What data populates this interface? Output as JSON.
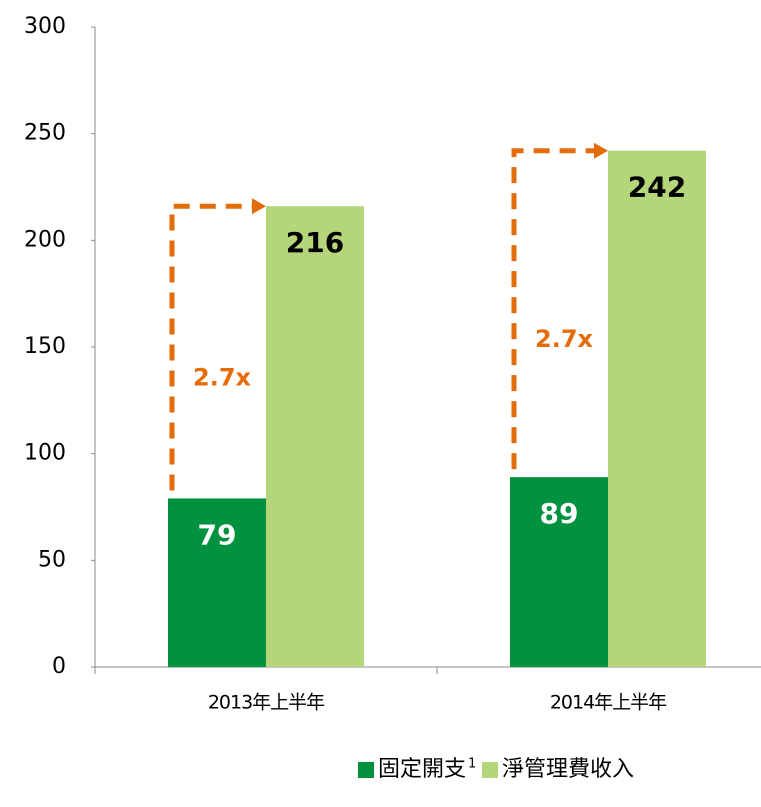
{
  "chart_data": {
    "type": "bar",
    "categories": [
      "2013年上半年",
      "2014年上半年"
    ],
    "series": [
      {
        "name": "固定開支",
        "color": "#00923f",
        "values": [
          79,
          89
        ]
      },
      {
        "name": "淨管理費收入",
        "color": "#b5d57a",
        "values": [
          216,
          242
        ]
      }
    ],
    "legend_footnote": "1",
    "annotations": [
      "2.7x",
      "2.7x"
    ],
    "annotation_color": "#e46c0a",
    "ylim": [
      0,
      300
    ],
    "yticks": [
      0,
      50,
      100,
      150,
      200,
      250,
      300
    ],
    "grid": false,
    "legend": "bottom"
  }
}
